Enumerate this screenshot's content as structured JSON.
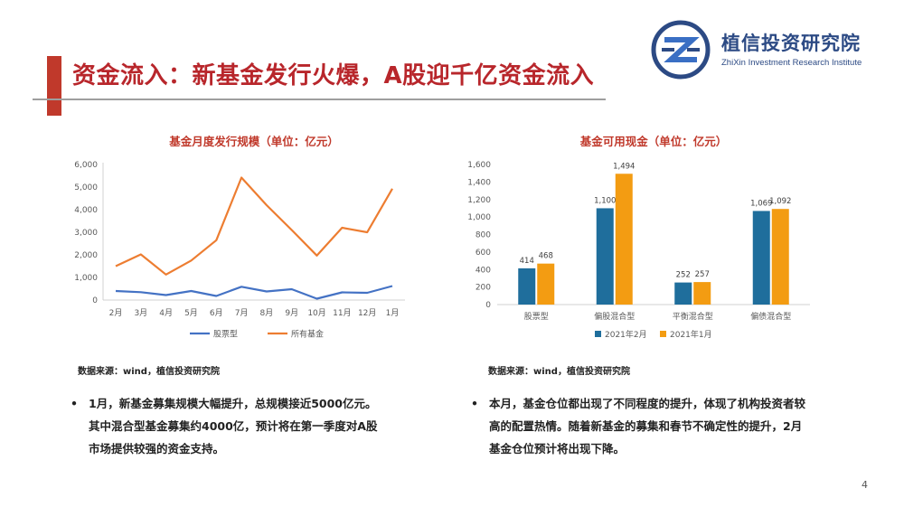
{
  "title": "资金流入：新基金发行火爆，A股迎千亿资金流入",
  "logo": {
    "name_cn": "植信投资研究院",
    "name_en": "ZhiXin Investment Research Institute",
    "icon": "zhixin-logo-icon",
    "colors": {
      "primary": "#2c4a84",
      "secondary": "#3a6fc4"
    }
  },
  "colors": {
    "accent": "#c0392b",
    "blue_series": "#4472c4",
    "orange_series": "#ed7d31",
    "bar_blue": "#1f6e9c",
    "bar_orange": "#f39c12"
  },
  "chart_data": [
    {
      "type": "line",
      "title": "基金月度发行规模（单位：亿元）",
      "categories": [
        "2月",
        "3月",
        "4月",
        "5月",
        "6月",
        "7月",
        "8月",
        "9月",
        "10月",
        "11月",
        "12月",
        "1月"
      ],
      "ylim": [
        0,
        6000
      ],
      "yticks": [
        "0",
        "1,000",
        "2,000",
        "3,000",
        "4,000",
        "5,000",
        "6,000"
      ],
      "grid": false,
      "legend": "bottom",
      "series": [
        {
          "name": "股票型",
          "values": [
            400,
            350,
            220,
            400,
            180,
            590,
            380,
            480,
            60,
            340,
            320,
            620
          ]
        },
        {
          "name": "所有基金",
          "values": [
            1500,
            2020,
            1130,
            1750,
            2650,
            5420,
            4200,
            3100,
            1970,
            3200,
            3000,
            4930
          ]
        }
      ]
    },
    {
      "type": "bar",
      "title": "基金可用现金（单位：亿元）",
      "categories": [
        "股票型",
        "偏股混合型",
        "平衡混合型",
        "偏债混合型"
      ],
      "ylim": [
        0,
        1600
      ],
      "yticks": [
        "0",
        "200",
        "400",
        "600",
        "800",
        "1,000",
        "1,200",
        "1,400",
        "1,600"
      ],
      "grid": false,
      "legend": "bottom",
      "series": [
        {
          "name": "2021年2月",
          "values": [
            414,
            1100,
            252,
            1069
          ],
          "labels": [
            "414",
            "1,100",
            "252",
            "1,069"
          ]
        },
        {
          "name": "2021年1月",
          "values": [
            468,
            1494,
            257,
            1092
          ],
          "labels": [
            "468",
            "1,494",
            "257",
            "1,092"
          ]
        }
      ]
    }
  ],
  "sources": {
    "left": "数据来源：wind，植信投资研究院",
    "right": "数据来源：wind，植信投资研究院"
  },
  "bullets": {
    "marker": "•",
    "left": [
      "1月，新基金募集规模大幅提升，总规模接近5000亿元。",
      "其中混合型基金募集约4000亿，预计将在第一季度对A股",
      "市场提供较强的资金支持。"
    ],
    "right": [
      "本月，基金仓位都出现了不同程度的提升，体现了机构投资者较",
      "高的配置热情。随着新基金的募集和春节不确定性的提升，2月",
      "基金仓位预计将出现下降。"
    ]
  },
  "page_number": "4"
}
